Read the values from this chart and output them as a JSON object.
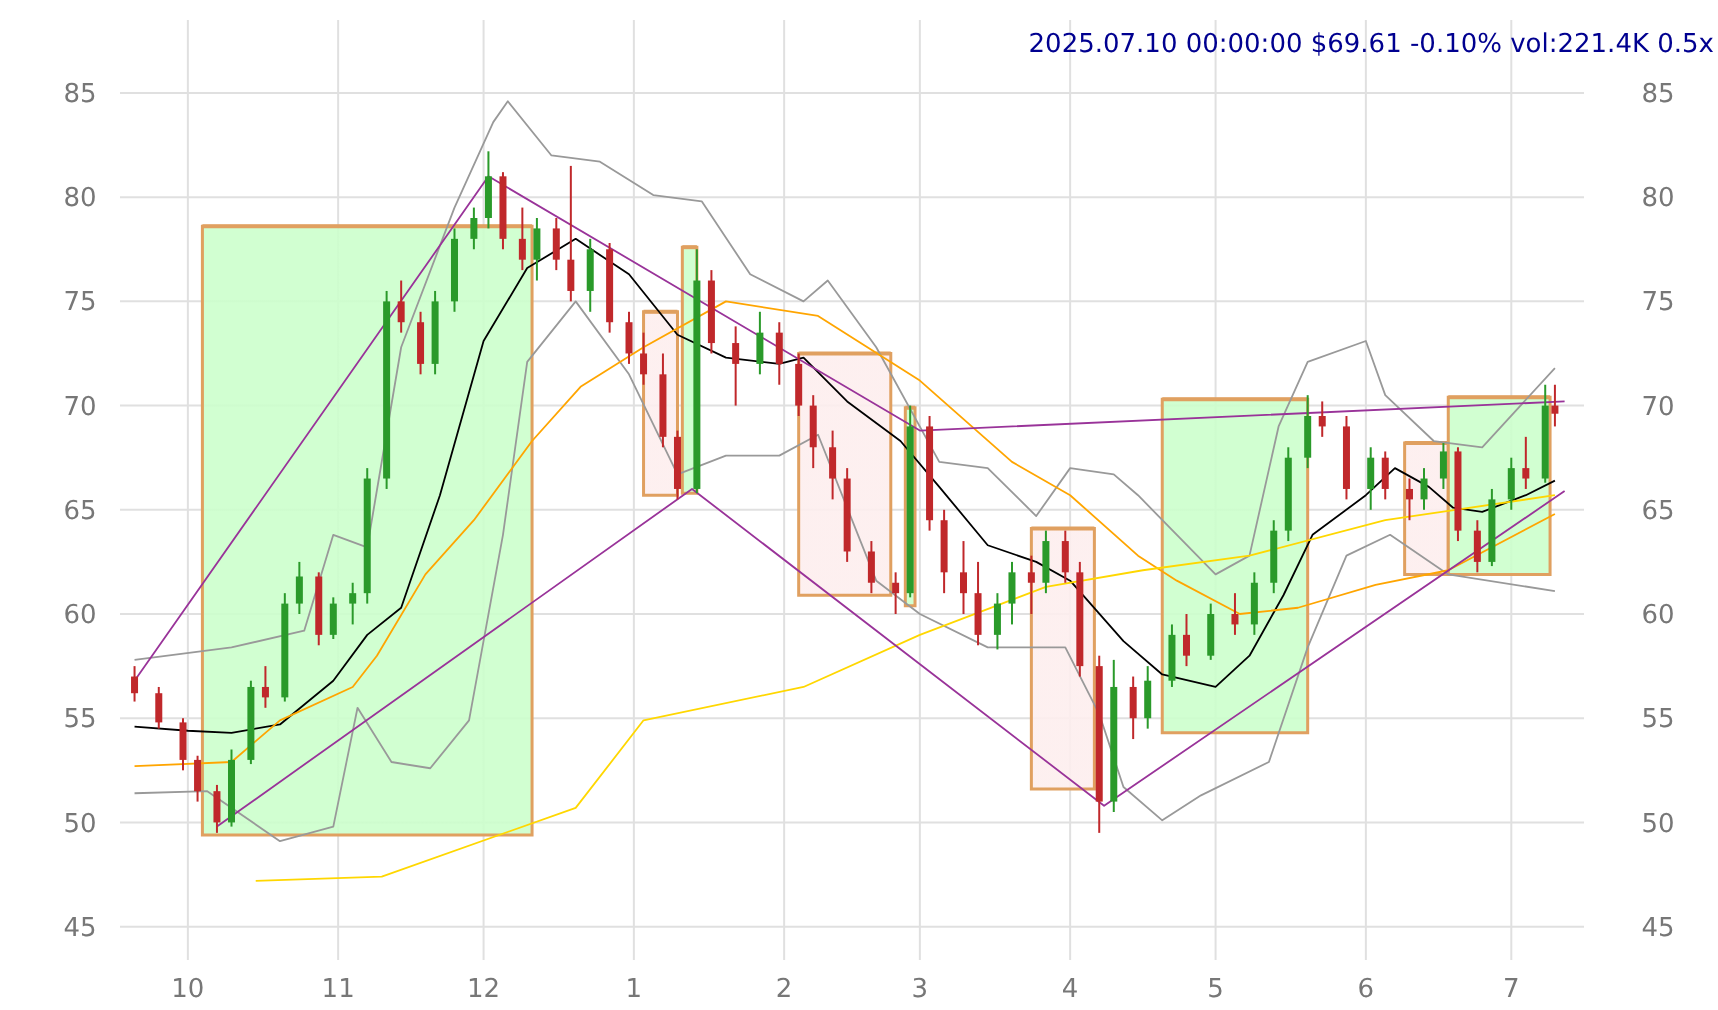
{
  "chart_data": {
    "type": "candlestick",
    "title": "2025.07.10 00:00:00 $69.61 -0.10% vol:221.4K 0.5x",
    "xlim": [
      "2024-09-17",
      "2025-07-16"
    ],
    "ylim": [
      43.4,
      88.5
    ],
    "y2lim": [
      43.4,
      88.5
    ],
    "xticks": [
      {
        "value": "2024-10-01",
        "label": "10"
      },
      {
        "value": "2024-11-01",
        "label": "11"
      },
      {
        "value": "2024-12-01",
        "label": "12"
      },
      {
        "value": "2025-01-01",
        "label": "1"
      },
      {
        "value": "2025-02-01",
        "label": "2"
      },
      {
        "value": "2025-03-01",
        "label": "3"
      },
      {
        "value": "2025-04-01",
        "label": "4"
      },
      {
        "value": "2025-05-01",
        "label": "5"
      },
      {
        "value": "2025-06-01",
        "label": "6"
      },
      {
        "value": "2025-07-01",
        "label": "7"
      }
    ],
    "yticks": [
      45,
      50,
      55,
      60,
      65,
      70,
      75,
      80,
      85
    ],
    "y2ticks": [
      45,
      50,
      55,
      60,
      65,
      70,
      75,
      80,
      85
    ],
    "grid": true,
    "x": [
      "2024-09-20",
      "2024-09-25",
      "2024-09-30",
      "2024-10-03",
      "2024-10-07",
      "2024-10-10",
      "2024-10-14",
      "2024-10-17",
      "2024-10-21",
      "2024-10-24",
      "2024-10-28",
      "2024-10-31",
      "2024-11-04",
      "2024-11-07",
      "2024-11-11",
      "2024-11-14",
      "2024-11-18",
      "2024-11-21",
      "2024-11-25",
      "2024-11-29",
      "2024-12-02",
      "2024-12-05",
      "2024-12-09",
      "2024-12-12",
      "2024-12-16",
      "2024-12-19",
      "2024-12-23",
      "2024-12-27",
      "2024-12-31",
      "2025-01-03",
      "2025-01-07",
      "2025-01-10",
      "2025-01-14",
      "2025-01-17",
      "2025-01-22",
      "2025-01-27",
      "2025-01-31",
      "2025-02-04",
      "2025-02-07",
      "2025-02-11",
      "2025-02-14",
      "2025-02-19",
      "2025-02-24",
      "2025-02-27",
      "2025-03-03",
      "2025-03-06",
      "2025-03-10",
      "2025-03-13",
      "2025-03-17",
      "2025-03-20",
      "2025-03-24",
      "2025-03-27",
      "2025-03-31",
      "2025-04-03",
      "2025-04-07",
      "2025-04-10",
      "2025-04-14",
      "2025-04-17",
      "2025-04-22",
      "2025-04-25",
      "2025-04-30",
      "2025-05-05",
      "2025-05-09",
      "2025-05-13",
      "2025-05-16",
      "2025-05-20",
      "2025-05-23",
      "2025-05-28",
      "2025-06-02",
      "2025-06-05",
      "2025-06-10",
      "2025-06-13",
      "2025-06-17",
      "2025-06-20",
      "2025-06-24",
      "2025-06-27",
      "2025-07-01",
      "2025-07-04",
      "2025-07-08",
      "2025-07-10"
    ],
    "ohlc": [
      [
        57,
        57.5,
        55.8,
        56.2
      ],
      [
        56.2,
        56.5,
        54.5,
        54.8
      ],
      [
        54.8,
        55,
        52.5,
        53
      ],
      [
        53,
        53.2,
        51,
        51.5
      ],
      [
        51.5,
        51.8,
        49.5,
        50
      ],
      [
        50,
        53.5,
        49.8,
        53
      ],
      [
        53,
        56.8,
        52.8,
        56.5
      ],
      [
        56.5,
        57.5,
        55.5,
        56
      ],
      [
        56,
        61,
        55.8,
        60.5
      ],
      [
        60.5,
        62.5,
        60,
        61.8
      ],
      [
        61.8,
        62,
        58.5,
        59
      ],
      [
        59,
        60.8,
        58.8,
        60.5
      ],
      [
        60.5,
        61.5,
        59.5,
        61
      ],
      [
        61,
        67,
        60.5,
        66.5
      ],
      [
        66.5,
        75.5,
        66,
        75
      ],
      [
        75,
        76,
        73.5,
        74
      ],
      [
        74,
        74.5,
        71.5,
        72
      ],
      [
        72,
        75.5,
        71.5,
        75
      ],
      [
        75,
        78.5,
        74.5,
        78
      ],
      [
        78,
        79.5,
        77.5,
        79
      ],
      [
        79,
        82.2,
        78.5,
        81
      ],
      [
        81,
        81.2,
        77.5,
        78
      ],
      [
        78,
        79.5,
        76.5,
        77
      ],
      [
        77,
        79,
        76,
        78.5
      ],
      [
        78.5,
        79,
        76.5,
        77
      ],
      [
        77,
        81.5,
        75,
        75.5
      ],
      [
        75.5,
        78,
        74.5,
        77.5
      ],
      [
        77.5,
        77.8,
        73.5,
        74
      ],
      [
        74,
        74.5,
        72,
        72.5
      ],
      [
        72.5,
        73.5,
        71,
        71.5
      ],
      [
        71.5,
        72.5,
        68,
        68.5
      ],
      [
        68.5,
        68.8,
        65.5,
        66
      ],
      [
        66,
        77.5,
        65.8,
        76
      ],
      [
        76,
        76.5,
        72.5,
        73
      ],
      [
        73,
        73.8,
        70,
        72
      ],
      [
        72,
        74.5,
        71.5,
        73.5
      ],
      [
        73.5,
        74,
        71,
        72
      ],
      [
        72,
        72.5,
        69.5,
        70
      ],
      [
        70,
        70.5,
        67,
        68
      ],
      [
        68,
        68.8,
        65.5,
        66.5
      ],
      [
        66.5,
        67,
        62.5,
        63
      ],
      [
        63,
        63.5,
        61,
        61.5
      ],
      [
        61.5,
        62,
        60,
        61
      ],
      [
        61,
        70,
        60.8,
        69
      ],
      [
        69,
        69.5,
        64,
        64.5
      ],
      [
        64.5,
        65,
        61,
        62
      ],
      [
        62,
        63.5,
        60,
        61
      ],
      [
        61,
        62.5,
        58.5,
        59
      ],
      [
        59,
        61,
        58.3,
        60.5
      ],
      [
        60.5,
        62.5,
        59.5,
        62
      ],
      [
        62,
        62.8,
        60,
        61.5
      ],
      [
        61.5,
        64,
        61,
        63.5
      ],
      [
        63.5,
        64,
        61.5,
        62
      ],
      [
        62,
        62.5,
        57,
        57.5
      ],
      [
        57.5,
        58,
        49.5,
        51
      ],
      [
        51,
        57.8,
        50.5,
        56.5
      ],
      [
        56.5,
        57,
        54,
        55
      ],
      [
        55,
        57.5,
        54.5,
        56.8
      ],
      [
        56.8,
        59.5,
        56.5,
        59
      ],
      [
        59,
        60,
        57.5,
        58
      ],
      [
        58,
        60.5,
        57.8,
        60
      ],
      [
        60,
        61,
        59,
        59.5
      ],
      [
        59.5,
        62,
        59,
        61.5
      ],
      [
        61.5,
        64.5,
        61,
        64
      ],
      [
        64,
        68,
        63.5,
        67.5
      ],
      [
        67.5,
        70.5,
        67,
        69.5
      ],
      [
        69.5,
        70.2,
        68.5,
        69
      ],
      [
        69,
        69.5,
        65.5,
        66
      ],
      [
        66,
        68,
        65,
        67.5
      ],
      [
        67.5,
        67.8,
        65.5,
        66
      ],
      [
        66,
        66.5,
        64.5,
        65.5
      ],
      [
        65.5,
        67,
        65,
        66.5
      ],
      [
        66.5,
        68.2,
        66,
        67.8
      ],
      [
        67.8,
        68,
        63.5,
        64
      ],
      [
        64,
        64.5,
        62,
        62.5
      ],
      [
        62.5,
        66,
        62.3,
        65.5
      ],
      [
        65.5,
        67.5,
        65,
        67
      ],
      [
        67,
        68.5,
        66,
        66.5
      ],
      [
        66.5,
        71,
        66.3,
        70
      ],
      [
        70,
        71,
        69,
        69.61
      ]
    ],
    "series": [
      {
        "type": "line",
        "color": "#e0a060",
        "colors": [
          "#ccffcc",
          "#ccffcc"
        ],
        "x": [
          "2024-10-04",
          "2024-12-11"
        ],
        "values": [
          78.6,
          78.6
        ],
        "lower": [
          49.4,
          49.4
        ],
        "upper": [
          78.6,
          78.6
        ]
      },
      {
        "type": "line",
        "color": "#e0a060",
        "colors": [
          "#fdeeee",
          "#fdeeee"
        ],
        "x": [
          "2025-01-03",
          "2025-01-10"
        ],
        "values": [
          74.5,
          74.5
        ],
        "lower": [
          65.7,
          65.7
        ],
        "upper": [
          74.5,
          74.5
        ]
      },
      {
        "type": "line",
        "color": "#e0a060",
        "colors": [
          "#ccffcc",
          "#ccffcc"
        ],
        "x": [
          "2025-01-11",
          "2025-01-14"
        ],
        "values": [
          77.6,
          77.6
        ],
        "lower": [
          65.8,
          65.8
        ],
        "upper": [
          77.6,
          77.6
        ]
      },
      {
        "type": "line",
        "color": "#e0a060",
        "colors": [
          "#fdeeee",
          "#fdeeee"
        ],
        "x": [
          "2025-02-04",
          "2025-02-23"
        ],
        "values": [
          72.5,
          72.5
        ],
        "lower": [
          60.9,
          60.9
        ],
        "upper": [
          72.5,
          72.5
        ]
      },
      {
        "type": "line",
        "color": "#e0a060",
        "colors": [
          "#ccffcc",
          "#ccffcc"
        ],
        "x": [
          "2025-02-26",
          "2025-02-28"
        ],
        "values": [
          69.9,
          69.9
        ],
        "lower": [
          60.4,
          60.4
        ],
        "upper": [
          69.9,
          69.9
        ]
      },
      {
        "type": "line",
        "color": "#e0a060",
        "colors": [
          "#fdeeee",
          "#fdeeee"
        ],
        "x": [
          "2025-03-24",
          "2025-04-06"
        ],
        "values": [
          64.1,
          64.1
        ],
        "lower": [
          51.6,
          51.6
        ],
        "upper": [
          64.1,
          64.1
        ]
      },
      {
        "type": "line",
        "color": "#e0a060",
        "colors": [
          "#ccffcc",
          "#ccffcc"
        ],
        "x": [
          "2025-04-20",
          "2025-05-20"
        ],
        "values": [
          70.3,
          70.3
        ],
        "lower": [
          54.3,
          54.3
        ],
        "upper": [
          70.3,
          70.3
        ]
      },
      {
        "type": "line",
        "color": "#e0a060",
        "colors": [
          "#fdeeee",
          "#fdeeee"
        ],
        "x": [
          "2025-06-09",
          "2025-06-18"
        ],
        "values": [
          68.2,
          68.2
        ],
        "lower": [
          61.9,
          61.9
        ],
        "upper": [
          68.2,
          68.2
        ]
      },
      {
        "type": "line",
        "color": "#e0a060",
        "colors": [
          "#ccffcc",
          "#ccffcc"
        ],
        "x": [
          "2025-06-18",
          "2025-07-09"
        ],
        "values": [
          70.4,
          70.4
        ],
        "lower": [
          61.9,
          61.9
        ],
        "upper": [
          70.4,
          70.4
        ]
      },
      {
        "type": "line",
        "color": "#999999",
        "x": [
          "2024-09-20",
          "2024-10-10",
          "2024-10-25",
          "2024-10-31",
          "2024-11-07",
          "2024-11-14",
          "2024-11-25",
          "2024-12-03",
          "2024-12-06",
          "2024-12-15",
          "2024-12-25",
          "2025-01-05",
          "2025-01-15",
          "2025-01-25",
          "2025-02-05",
          "2025-02-10",
          "2025-02-20",
          "2025-03-05",
          "2025-03-15",
          "2025-03-25",
          "2025-04-01",
          "2025-04-10",
          "2025-04-15",
          "2025-05-01",
          "2025-05-08",
          "2025-05-14",
          "2025-05-20",
          "2025-06-01",
          "2025-06-05",
          "2025-06-15",
          "2025-06-25",
          "2025-07-10"
        ],
        "values": [
          57.8,
          58.4,
          59.2,
          63.8,
          63.2,
          72.8,
          79.5,
          83.6,
          84.6,
          82,
          81.7,
          80.1,
          79.8,
          76.3,
          75,
          76,
          72.8,
          67.3,
          67,
          64.7,
          67,
          66.7,
          65.7,
          61.9,
          62.8,
          69,
          72.1,
          73.1,
          70.5,
          68.3,
          68,
          71.8
        ]
      },
      {
        "type": "line",
        "color": "#999999",
        "x": [
          "2024-09-20",
          "2024-10-05",
          "2024-10-20",
          "2024-10-31",
          "2024-11-05",
          "2024-11-12",
          "2024-11-20",
          "2024-11-28",
          "2024-12-05",
          "2024-12-10",
          "2024-12-20",
          "2024-12-31",
          "2025-01-10",
          "2025-01-20",
          "2025-01-31",
          "2025-02-08",
          "2025-02-20",
          "2025-03-01",
          "2025-03-15",
          "2025-03-31",
          "2025-04-07",
          "2025-04-12",
          "2025-04-20",
          "2025-04-28",
          "2025-05-12",
          "2025-05-20",
          "2025-05-28",
          "2025-06-06",
          "2025-06-18",
          "2025-07-10"
        ],
        "values": [
          51.4,
          51.5,
          49.1,
          49.8,
          55.5,
          52.9,
          52.6,
          54.9,
          63.8,
          72.1,
          75,
          71.5,
          66.7,
          67.6,
          67.6,
          68.6,
          61.6,
          60,
          58.4,
          58.4,
          55.2,
          51.7,
          50.1,
          51.3,
          52.9,
          58.4,
          62.8,
          63.8,
          61.9,
          61.1
        ]
      },
      {
        "type": "line",
        "color": "#000000",
        "x": [
          "2024-09-20",
          "2024-10-01",
          "2024-10-10",
          "2024-10-20",
          "2024-10-31",
          "2024-11-07",
          "2024-11-14",
          "2024-11-22",
          "2024-12-01",
          "2024-12-10",
          "2024-12-20",
          "2024-12-31",
          "2025-01-10",
          "2025-01-20",
          "2025-01-31",
          "2025-02-05",
          "2025-02-14",
          "2025-02-25",
          "2025-03-05",
          "2025-03-15",
          "2025-03-25",
          "2025-04-01",
          "2025-04-12",
          "2025-04-20",
          "2025-05-01",
          "2025-05-08",
          "2025-05-15",
          "2025-05-21",
          "2025-06-01",
          "2025-06-07",
          "2025-06-14",
          "2025-06-19",
          "2025-06-25",
          "2025-07-04",
          "2025-07-10"
        ],
        "values": [
          54.6,
          54.4,
          54.3,
          54.7,
          56.8,
          59,
          60.3,
          65.7,
          73.1,
          76.6,
          78,
          76.3,
          73.4,
          72.3,
          72,
          72.3,
          70.2,
          68.3,
          66.1,
          63.3,
          62.5,
          61.6,
          58.7,
          57.1,
          56.5,
          58,
          60.9,
          63.8,
          65.7,
          67,
          66.1,
          65.1,
          64.9,
          65.7,
          66.4
        ]
      },
      {
        "type": "line",
        "color": "#ffa500",
        "x": [
          "2024-09-20",
          "2024-10-10",
          "2024-10-20",
          "2024-11-04",
          "2024-11-09",
          "2024-11-19",
          "2024-11-29",
          "2024-12-11",
          "2024-12-21",
          "2025-01-03",
          "2025-01-20",
          "2025-02-08",
          "2025-03-01",
          "2025-03-20",
          "2025-04-01",
          "2025-04-15",
          "2025-04-23",
          "2025-05-06",
          "2025-05-18",
          "2025-06-03",
          "2025-06-18",
          "2025-07-10"
        ],
        "values": [
          52.7,
          52.9,
          54.9,
          56.5,
          58,
          61.9,
          64.5,
          68.3,
          70.9,
          72.8,
          75,
          74.3,
          71.2,
          67.3,
          65.7,
          62.8,
          61.6,
          60,
          60.3,
          61.4,
          62.1,
          64.8
        ]
      },
      {
        "type": "line",
        "color": "#ffd700",
        "x": [
          "2024-10-15",
          "2024-11-10",
          "2024-12-20",
          "2025-01-03",
          "2025-02-05",
          "2025-03-01",
          "2025-03-27",
          "2025-04-16",
          "2025-05-08",
          "2025-06-05",
          "2025-07-10"
        ],
        "values": [
          47.2,
          47.4,
          50.7,
          54.9,
          56.5,
          59,
          61.3,
          62.1,
          62.8,
          64.5,
          65.7
        ]
      },
      {
        "type": "line",
        "color": "#993399",
        "x": [
          "2024-09-20",
          "2024-12-02",
          "2025-03-01",
          "2025-07-12"
        ],
        "values": [
          56.8,
          81,
          68.8,
          70.2
        ]
      },
      {
        "type": "line",
        "color": "#993399",
        "x": [
          "2024-10-07",
          "2025-01-13",
          "2025-04-08",
          "2025-07-12"
        ],
        "values": [
          49.8,
          66,
          50.8,
          65.9
        ]
      }
    ]
  }
}
